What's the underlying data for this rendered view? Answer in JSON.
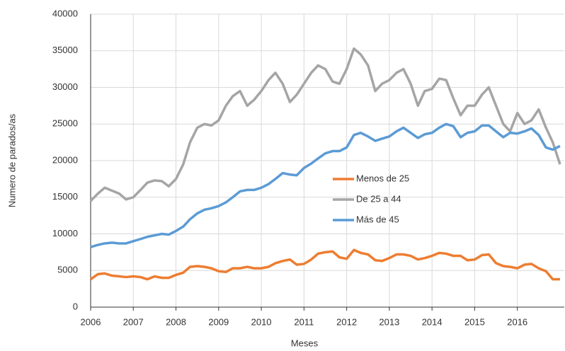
{
  "chart_data": {
    "type": "line",
    "x_label": "Meses",
    "y_label": "Numero de parados/as",
    "x": [
      2006,
      2006.17,
      2006.33,
      2006.5,
      2006.67,
      2006.83,
      2007,
      2007.17,
      2007.33,
      2007.5,
      2007.67,
      2007.83,
      2008,
      2008.17,
      2008.33,
      2008.5,
      2008.67,
      2008.83,
      2009,
      2009.17,
      2009.33,
      2009.5,
      2009.67,
      2009.83,
      2010,
      2010.17,
      2010.33,
      2010.5,
      2010.67,
      2010.83,
      2011,
      2011.17,
      2011.33,
      2011.5,
      2011.67,
      2011.83,
      2012,
      2012.17,
      2012.33,
      2012.5,
      2012.67,
      2012.83,
      2013,
      2013.17,
      2013.33,
      2013.5,
      2013.67,
      2013.83,
      2014,
      2014.17,
      2014.33,
      2014.5,
      2014.67,
      2014.83,
      2015,
      2015.17,
      2015.33,
      2015.5,
      2015.67,
      2015.83,
      2016,
      2016.17,
      2016.33,
      2016.5,
      2016.67,
      2016.83,
      2017
    ],
    "series": [
      {
        "name": "Menos de 25",
        "color": "#ED7D31",
        "values": [
          3800,
          4500,
          4600,
          4300,
          4200,
          4100,
          4200,
          4100,
          3800,
          4200,
          4000,
          4000,
          4400,
          4700,
          5500,
          5600,
          5500,
          5300,
          4900,
          4800,
          5300,
          5300,
          5500,
          5300,
          5300,
          5500,
          6000,
          6300,
          6500,
          5800,
          5900,
          6500,
          7300,
          7500,
          7600,
          6800,
          6600,
          7800,
          7400,
          7200,
          6400,
          6300,
          6700,
          7200,
          7200,
          7000,
          6500,
          6700,
          7000,
          7400,
          7300,
          7000,
          7000,
          6400,
          6500,
          7100,
          7200,
          6000,
          5600,
          5500,
          5300,
          5800,
          5900,
          5300,
          4900,
          3800,
          3800
        ]
      },
      {
        "name": "De 25 a 44",
        "color": "#A5A5A5",
        "values": [
          14500,
          15500,
          16300,
          15900,
          15500,
          14700,
          15000,
          16000,
          17000,
          17300,
          17200,
          16500,
          17500,
          19500,
          22500,
          24500,
          25000,
          24800,
          25500,
          27500,
          28800,
          29500,
          27500,
          28300,
          29500,
          31000,
          32000,
          30500,
          28000,
          29000,
          30500,
          32000,
          33000,
          32500,
          30800,
          30500,
          32500,
          35300,
          34500,
          33000,
          29500,
          30500,
          31000,
          32000,
          32500,
          30500,
          27500,
          29500,
          29800,
          31200,
          31000,
          28500,
          26200,
          27500,
          27500,
          29000,
          30000,
          27500,
          25000,
          24000,
          26500,
          25000,
          25500,
          27000,
          24500,
          22500,
          19500
        ]
      },
      {
        "name": "Más de 45",
        "color": "#5B9BD5",
        "values": [
          8200,
          8500,
          8700,
          8800,
          8700,
          8700,
          9000,
          9300,
          9600,
          9800,
          10000,
          9900,
          10400,
          11000,
          12000,
          12800,
          13300,
          13500,
          13800,
          14300,
          15000,
          15800,
          16000,
          16000,
          16300,
          16800,
          17500,
          18300,
          18100,
          18000,
          19000,
          19600,
          20300,
          21000,
          21300,
          21300,
          21800,
          23500,
          23800,
          23300,
          22700,
          23000,
          23300,
          24000,
          24500,
          23800,
          23100,
          23600,
          23800,
          24500,
          25000,
          24700,
          23200,
          23800,
          24000,
          24800,
          24800,
          24000,
          23200,
          23800,
          23700,
          24000,
          24400,
          23500,
          21800,
          21500,
          22000
        ]
      }
    ],
    "xlim": [
      2006,
      2017.1
    ],
    "xticks": [
      2006,
      2007,
      2008,
      2009,
      2010,
      2011,
      2012,
      2013,
      2014,
      2015,
      2016
    ],
    "ylim": [
      0,
      40000
    ],
    "yticks": [
      0,
      5000,
      10000,
      15000,
      20000,
      25000,
      30000,
      35000,
      40000
    ],
    "grid": true,
    "legend": "center"
  }
}
